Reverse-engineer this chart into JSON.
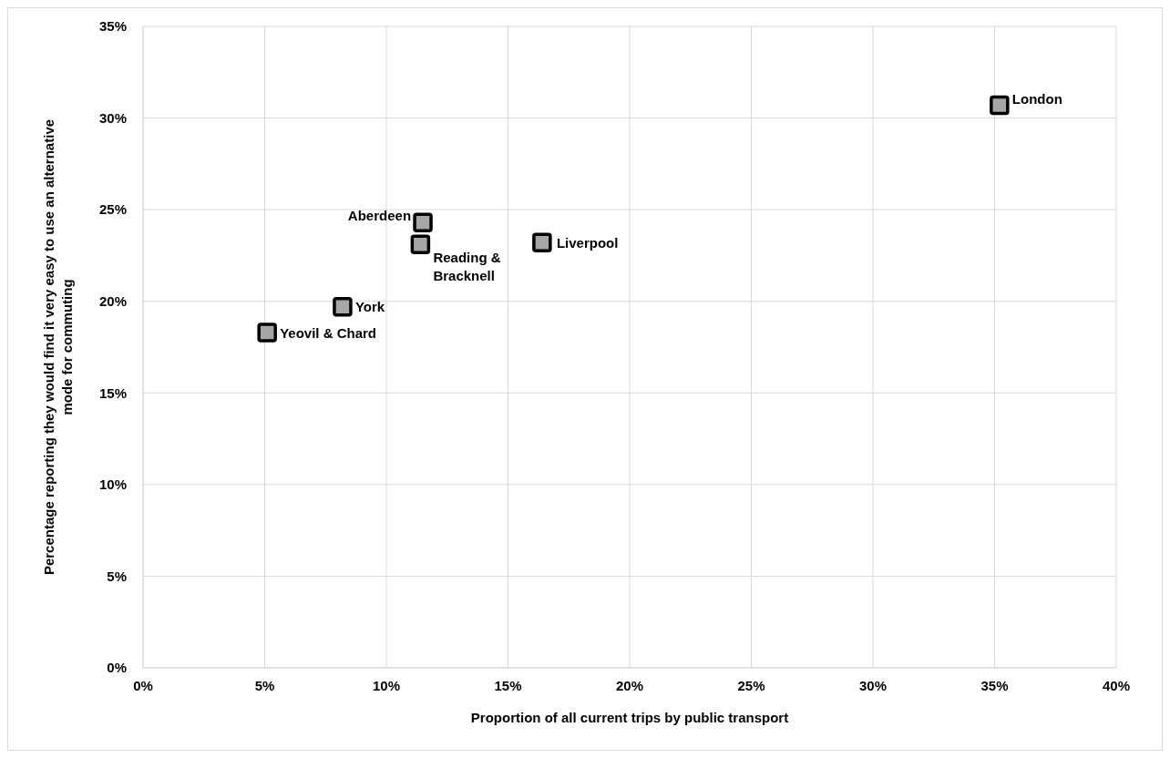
{
  "chart_data": {
    "type": "scatter",
    "xlabel": "Proportion of all current trips by public transport",
    "ylabel": "Percentage reporting they would find it very easy to use an alternative mode for commuting",
    "x": [
      5.1,
      8.2,
      11.4,
      11.5,
      16.4,
      35.2
    ],
    "values": [
      18.3,
      19.7,
      23.1,
      24.3,
      23.2,
      30.7
    ],
    "color": "#a6a6a6",
    "marker": "square",
    "xlim": [
      0,
      40
    ],
    "xticks": [
      {
        "value": 0,
        "label": "0%"
      },
      {
        "value": 5,
        "label": "5%"
      },
      {
        "value": 10,
        "label": "10%"
      },
      {
        "value": 15,
        "label": "15%"
      },
      {
        "value": 20,
        "label": "20%"
      },
      {
        "value": 25,
        "label": "25%"
      },
      {
        "value": 30,
        "label": "30%"
      },
      {
        "value": 35,
        "label": "35%"
      },
      {
        "value": 40,
        "label": "40%"
      }
    ],
    "ylim": [
      0,
      35
    ],
    "yticks": [
      {
        "value": 0,
        "label": "0%"
      },
      {
        "value": 5,
        "label": "5%"
      },
      {
        "value": 10,
        "label": "10%"
      },
      {
        "value": 15,
        "label": "15%"
      },
      {
        "value": 20,
        "label": "20%"
      },
      {
        "value": 25,
        "label": "25%"
      },
      {
        "value": 30,
        "label": "30%"
      },
      {
        "value": 35,
        "label": "35%"
      }
    ],
    "grid": true,
    "annotations": [
      {
        "text": "Yeovil & Chard",
        "x": 5.1,
        "y": 18.3
      },
      {
        "text": "York",
        "x": 8.2,
        "y": 19.7
      },
      {
        "text": "Reading & Bracknell",
        "x": 11.4,
        "y": 23.1
      },
      {
        "text": "Aberdeen",
        "x": 11.5,
        "y": 24.3
      },
      {
        "text": "Liverpool",
        "x": 16.4,
        "y": 23.2
      },
      {
        "text": "London",
        "x": 35.2,
        "y": 30.7
      }
    ]
  }
}
